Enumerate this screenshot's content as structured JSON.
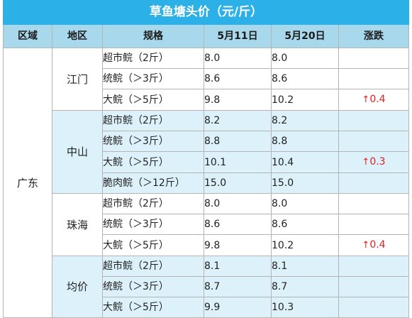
{
  "title": "草鱼塘头价（元/斤）",
  "headers": {
    "region": "区域",
    "district": "地区",
    "spec": "规格",
    "date1": "5月11日",
    "date2": "5月20日",
    "change": "涨跌"
  },
  "region": "广东",
  "groups": [
    {
      "district": "江门",
      "rows": [
        {
          "spec": "超市鲩（2斤）",
          "p1": "8.0",
          "p2": "8.0",
          "change": ""
        },
        {
          "spec": "统鲩（＞3斤）",
          "p1": "8.6",
          "p2": "8.6",
          "change": ""
        },
        {
          "spec": "大鲩（＞5斤）",
          "p1": "9.8",
          "p2": "10.2",
          "change": "0.4"
        }
      ]
    },
    {
      "district": "中山",
      "rows": [
        {
          "spec": "超市鲩（2斤）",
          "p1": "8.2",
          "p2": "8.2",
          "change": ""
        },
        {
          "spec": "统鲩（＞3斤）",
          "p1": "8.8",
          "p2": "8.8",
          "change": ""
        },
        {
          "spec": "大鲩（＞5斤）",
          "p1": "10.1",
          "p2": "10.4",
          "change": "0.3"
        },
        {
          "spec": "脆肉鲩（＞12斤）",
          "p1": "15.0",
          "p2": "15.0",
          "change": ""
        }
      ]
    },
    {
      "district": "珠海",
      "rows": [
        {
          "spec": "超市鲩（2斤）",
          "p1": "8.0",
          "p2": "8.0",
          "change": ""
        },
        {
          "spec": "统鲩（＞3斤）",
          "p1": "8.6",
          "p2": "8.6",
          "change": ""
        },
        {
          "spec": "大鲩（＞5斤）",
          "p1": "9.8",
          "p2": "10.2",
          "change": "0.4"
        }
      ]
    },
    {
      "district": "均价",
      "rows": [
        {
          "spec": "超市鲩（2斤）",
          "p1": "8.1",
          "p2": "8.1",
          "change": ""
        },
        {
          "spec": "统鲩（＞3斤）",
          "p1": "8.7",
          "p2": "8.7",
          "change": ""
        },
        {
          "spec": "大鲩（＞5斤）",
          "p1": "9.9",
          "p2": "10.3",
          "change": ""
        }
      ]
    }
  ],
  "colors": {
    "title_bg": "#2bb1e8",
    "header_bg": "#a8d8ec",
    "band_bg": "#dcf1fa",
    "increase": "#e02020"
  },
  "icons": {
    "increase": "up-arrow-icon"
  }
}
